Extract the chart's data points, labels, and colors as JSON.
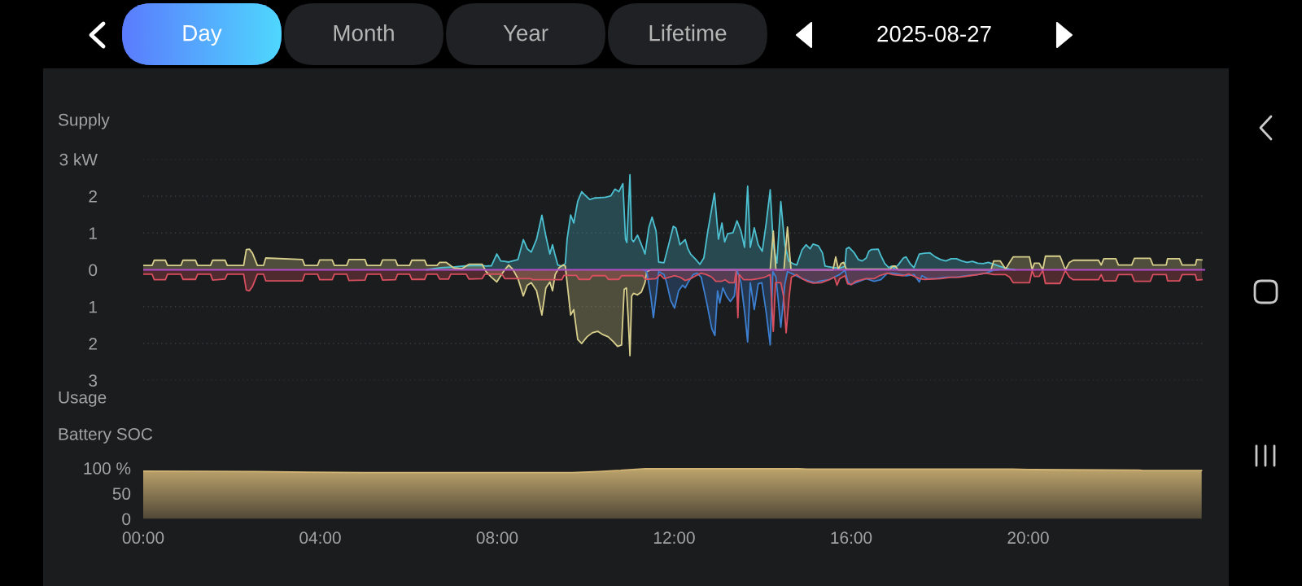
{
  "chart_data": [
    {
      "type": "other",
      "annotations": [
        "Day",
        "Month",
        "Year",
        "Lifetime",
        "2025-08-27"
      ]
    },
    {
      "type": "area",
      "annotations": [
        "Supply",
        "Usage"
      ],
      "xlim": [
        0,
        24
      ],
      "ylim": [
        -3,
        3
      ],
      "yticks": [
        {
          "value": 3,
          "label": "3 kW"
        },
        2,
        1,
        0,
        {
          "value": -1,
          "label": "1"
        },
        {
          "value": -2,
          "label": "2"
        },
        {
          "value": -3,
          "label": "3"
        }
      ],
      "grid": "y",
      "tick_labels": "y",
      "ref_lines": [
        {
          "axis": "y",
          "value": 0,
          "color": "#b04cc8"
        }
      ],
      "series": [
        {
          "color": "#4cc0d0",
          "x": [
            6.4,
            6.73,
            7.03,
            7.33,
            7.63,
            7.75,
            7.87,
            7.99,
            8.08,
            8.17,
            8.26,
            8.35,
            8.47,
            8.59,
            8.68,
            8.77,
            8.89,
            9.01,
            9.1,
            9.19,
            9.25,
            9.31,
            9.37,
            9.46,
            9.54,
            9.58,
            9.66,
            9.73,
            9.82,
            9.91,
            10.0,
            10.09,
            10.21,
            10.33,
            10.45,
            10.57,
            10.66,
            10.75,
            10.84,
            10.9,
            10.93,
            11.0,
            11.04,
            11.08,
            11.17,
            11.26,
            11.34,
            11.43,
            11.5,
            11.59,
            11.65,
            11.77,
            11.86,
            11.98,
            12.04,
            12.13,
            12.25,
            12.31,
            12.37,
            12.49,
            12.58,
            12.67,
            12.76,
            12.91,
            13.0,
            13.08,
            13.14,
            13.21,
            13.33,
            13.42,
            13.51,
            13.59,
            13.66,
            13.72,
            13.81,
            13.9,
            13.99,
            14.08,
            14.17,
            14.24,
            14.32,
            14.41,
            14.5,
            14.59,
            14.68,
            14.77,
            14.89,
            14.98,
            15.07,
            15.14,
            15.26,
            15.35,
            15.41,
            15.62,
            15.74,
            15.86,
            15.89,
            15.95,
            16.07,
            16.16,
            16.25,
            16.34,
            16.4,
            16.46,
            16.61,
            16.67,
            16.76,
            16.85,
            16.91,
            16.97,
            17.06,
            17.18,
            17.24,
            17.33,
            17.42,
            17.54,
            17.66,
            17.78,
            17.9,
            18.02,
            18.14,
            18.26,
            18.38,
            18.5,
            18.62,
            18.74,
            18.86,
            18.98,
            19.1,
            19.22,
            19.34,
            19.46,
            19.58,
            19.7
          ],
          "values": [
            0,
            0.06,
            0.08,
            0.11,
            0.12,
            0.1,
            0.11,
            0.43,
            0.24,
            0.23,
            0.21,
            0.24,
            0.28,
            0.82,
            0.57,
            0.48,
            0.83,
            1.48,
            0.91,
            0.43,
            0.68,
            0.39,
            0.13,
            0.1,
            0.17,
            0.83,
            1.49,
            1.27,
            1.86,
            2.12,
            2.01,
            1.91,
            1.95,
            1.96,
            1.97,
            2.01,
            2.19,
            2.12,
            2.34,
            0.83,
            0.74,
            2.58,
            0.83,
            0.76,
            0.94,
            0.68,
            0.43,
            1.16,
            1.43,
            1.05,
            0.21,
            0.19,
            0.61,
            1.18,
            1.13,
            0.68,
            0.82,
            0.57,
            0.43,
            0.28,
            0.15,
            0.32,
            1.05,
            2.08,
            0.83,
            1.27,
            0.76,
            0.98,
            1.01,
            1.33,
            1.05,
            0.61,
            2.27,
            0.61,
            1.14,
            0.68,
            0.5,
            1.27,
            2.17,
            0.68,
            0.18,
            1.85,
            0.68,
            0.24,
            0.17,
            0.13,
            0.54,
            0.68,
            0.57,
            0.7,
            0.65,
            0.46,
            0.1,
            0.06,
            0.04,
            0.1,
            0.57,
            0.61,
            0.46,
            0.28,
            0.24,
            0.32,
            0.5,
            0.55,
            0.56,
            0.39,
            0.17,
            0.06,
            0.1,
            0.04,
            0.13,
            0.32,
            0.35,
            0.17,
            0.06,
            0.43,
            0.45,
            0.46,
            0.35,
            0.28,
            0.24,
            0.3,
            0.3,
            0.24,
            0.2,
            0.23,
            0.18,
            0.17,
            0.2,
            0.15,
            0.1,
            0.06,
            0.02,
            0
          ]
        },
        {
          "color": "#d8cf8c",
          "x": [
            0,
            0.2,
            0.25,
            0.5,
            0.55,
            0.85,
            0.9,
            1.18,
            1.23,
            1.52,
            1.57,
            1.85,
            1.9,
            2.27,
            2.33,
            2.4,
            2.47,
            2.58,
            2.72,
            2.77,
            3.6,
            3.65,
            3.94,
            3.99,
            4.27,
            4.32,
            4.6,
            4.65,
            5.01,
            5.06,
            5.36,
            5.41,
            5.7,
            5.75,
            6.02,
            6.07,
            6.36,
            6.41,
            6.64,
            6.7,
            6.85,
            7.02,
            7.2,
            7.36,
            7.66,
            7.75,
            7.87,
            7.99,
            8.08,
            8.17,
            8.26,
            8.35,
            8.47,
            8.59,
            8.68,
            8.77,
            8.89,
            9.01,
            9.1,
            9.19,
            9.25,
            9.31,
            9.4,
            9.49,
            9.54,
            9.58,
            9.66,
            9.73,
            9.82,
            9.91,
            10.03,
            10.15,
            10.27,
            10.39,
            10.51,
            10.63,
            10.72,
            10.81,
            10.87,
            10.92,
            10.96,
            11.0,
            11.04,
            11.08,
            11.17,
            11.26,
            11.34,
            11.38,
            11.47,
            14.17,
            14.24,
            14.3,
            14.48,
            14.56,
            14.64,
            15.59,
            15.65,
            15.71,
            15.77,
            15.83,
            15.89,
            16.88,
            16.94,
            17.0,
            17.06,
            19.16,
            19.22,
            19.37,
            19.49,
            19.58,
            19.66,
            20.03,
            20.09,
            20.14,
            20.25,
            20.33,
            20.39,
            20.72,
            20.84,
            20.93,
            21.02,
            21.59,
            21.65,
            21.71,
            21.98,
            22.04,
            22.34,
            22.4,
            22.76,
            22.82,
            23.12,
            23.15,
            23.42,
            23.48,
            23.78,
            23.81,
            23.93
          ],
          "values": [
            0.12,
            0.12,
            0.26,
            0.26,
            0.12,
            0.12,
            0.26,
            0.26,
            0.12,
            0.12,
            0.26,
            0.26,
            0.12,
            0.12,
            0.55,
            0.56,
            0.45,
            0.12,
            0.12,
            0.32,
            0.28,
            0.12,
            0.12,
            0.27,
            0.27,
            0.12,
            0.12,
            0.28,
            0.28,
            0.12,
            0.12,
            0.27,
            0.27,
            0.12,
            0.12,
            0.26,
            0.26,
            0.12,
            0.12,
            0.2,
            0.2,
            0.05,
            0.03,
            0.15,
            0.15,
            -0.05,
            -0.2,
            -0.33,
            -0.16,
            0,
            0.13,
            0.02,
            -0.24,
            -0.71,
            -0.42,
            -0.35,
            -0.57,
            -1.23,
            -0.49,
            -0.33,
            -0.57,
            -0.13,
            0.06,
            0.13,
            0.1,
            -0.35,
            -1.23,
            -1.08,
            -1.89,
            -2.0,
            -1.82,
            -1.71,
            -1.67,
            -1.76,
            -1.82,
            -1.96,
            -2.08,
            -2.04,
            -0.53,
            -0.49,
            -1.3,
            -2.33,
            -0.71,
            -0.64,
            -0.68,
            -0.6,
            -0.35,
            -0.05,
            0,
            0,
            1.05,
            0,
            0,
            1.16,
            0,
            0,
            0.35,
            0.02,
            0.17,
            0.2,
            0.02,
            0.02,
            0.1,
            0.1,
            0,
            0,
            0.24,
            0.24,
            0.02,
            0.2,
            0.35,
            0.35,
            0,
            0.18,
            0.18,
            0,
            0.37,
            0.37,
            0,
            0.2,
            0.26,
            0.26,
            0.13,
            0.3,
            0.3,
            0.13,
            0.13,
            0.31,
            0.31,
            0.13,
            0.13,
            0.3,
            0.3,
            0.13,
            0.13,
            0.28,
            0.27
          ]
        },
        {
          "color": "#3d7fd0",
          "x": [
            11.3,
            11.38,
            11.47,
            11.53,
            11.59,
            11.65,
            11.77,
            11.83,
            11.92,
            12.01,
            12.1,
            12.19,
            12.25,
            12.31,
            12.43,
            12.52,
            12.61,
            12.73,
            12.85,
            12.92,
            12.98,
            13.03,
            13.1,
            13.18,
            13.27,
            13.36,
            13.42,
            13.51,
            13.6,
            13.66,
            13.72,
            13.81,
            13.9,
            13.98,
            14.08,
            14.17,
            14.23,
            14.3,
            14.41,
            14.5,
            14.56,
            14.71,
            14.89,
            15.07,
            15.19,
            15.31,
            15.5,
            15.62,
            15.74,
            15.86,
            15.92,
            15.98,
            16.1,
            16.34,
            16.52,
            16.67,
            16.82,
            16.94,
            17.24,
            17.42,
            17.54,
            17.6,
            17.72,
            17.9,
            18.14,
            18.38,
            18.62,
            18.86,
            19.04,
            19.22,
            19.34
          ],
          "values": [
            0,
            -0.05,
            -0.71,
            -1.3,
            -0.71,
            -0.05,
            -0.13,
            -0.35,
            -0.83,
            -1.04,
            -0.57,
            -0.42,
            -0.49,
            -0.35,
            -0.13,
            -0.09,
            -0.2,
            -0.86,
            -1.6,
            -1.78,
            -0.57,
            -0.9,
            -0.49,
            -0.71,
            -0.86,
            -0.71,
            -0.01,
            -0.35,
            -1.23,
            -1.96,
            -0.35,
            -1.08,
            -0.38,
            -0.35,
            -1.16,
            -2.04,
            -0.05,
            -0.2,
            -1.56,
            -0.4,
            -0.05,
            -0.13,
            -0.24,
            -0.31,
            -0.35,
            -0.3,
            -0.27,
            -0.2,
            -0.13,
            -0.01,
            -0.31,
            -0.4,
            -0.35,
            -0.24,
            -0.31,
            -0.27,
            -0.09,
            -0.09,
            -0.16,
            -0.13,
            -0.33,
            -0.16,
            -0.24,
            -0.24,
            -0.2,
            -0.2,
            -0.16,
            -0.13,
            -0.09,
            -0.01,
            0
          ]
        },
        {
          "color": "#d8505f",
          "x": [
            0,
            0.2,
            0.25,
            0.5,
            0.55,
            0.85,
            0.9,
            1.18,
            1.23,
            1.52,
            1.57,
            1.85,
            1.9,
            2.27,
            2.33,
            2.4,
            2.47,
            2.58,
            2.72,
            2.77,
            3.6,
            3.65,
            3.94,
            3.99,
            4.27,
            4.32,
            4.6,
            4.65,
            5.01,
            5.06,
            5.36,
            5.41,
            5.7,
            5.75,
            6.02,
            6.07,
            6.36,
            6.41,
            6.64,
            6.7,
            6.9,
            6.95,
            7.3,
            7.36,
            7.66,
            7.72,
            8.11,
            8.17,
            8.77,
            8.8,
            9.46,
            9.51,
            9.79,
            9.85,
            10.09,
            10.15,
            10.45,
            10.51,
            10.75,
            10.81,
            11.29,
            11.35,
            11.59,
            11.68,
            11.77,
            11.89,
            12.01,
            12.13,
            12.25,
            12.37,
            12.49,
            12.61,
            12.73,
            12.85,
            12.94,
            13.08,
            13.15,
            13.24,
            13.36,
            13.4,
            13.44,
            13.47,
            13.57,
            13.75,
            13.9,
            14.05,
            14.17,
            14.24,
            14.29,
            14.41,
            14.47,
            14.53,
            14.6,
            14.65,
            14.77,
            14.89,
            15.0,
            15.14,
            15.32,
            15.5,
            15.62,
            15.68,
            15.74,
            15.86,
            15.92,
            16.01,
            16.1,
            16.34,
            16.52,
            16.64,
            16.82,
            16.94,
            17.18,
            17.3,
            17.54,
            17.66,
            18.02,
            18.26,
            18.44,
            18.68,
            18.86,
            19.04,
            19.22,
            19.49,
            19.58,
            19.66,
            20.03,
            20.09,
            20.14,
            20.25,
            20.33,
            20.39,
            20.72,
            20.84,
            20.93,
            21.02,
            21.59,
            21.65,
            21.71,
            21.98,
            22.04,
            22.34,
            22.4,
            22.76,
            22.82,
            23.12,
            23.15,
            23.42,
            23.48,
            23.78,
            23.81,
            23.93
          ],
          "values": [
            -0.12,
            -0.12,
            -0.27,
            -0.27,
            -0.12,
            -0.12,
            -0.26,
            -0.26,
            -0.12,
            -0.12,
            -0.28,
            -0.25,
            -0.12,
            -0.12,
            -0.55,
            -0.57,
            -0.45,
            -0.12,
            -0.12,
            -0.3,
            -0.3,
            -0.12,
            -0.12,
            -0.27,
            -0.27,
            -0.12,
            -0.12,
            -0.29,
            -0.28,
            -0.12,
            -0.12,
            -0.28,
            -0.27,
            -0.12,
            -0.12,
            -0.26,
            -0.26,
            -0.12,
            -0.12,
            -0.25,
            -0.25,
            -0.12,
            -0.12,
            -0.25,
            -0.24,
            -0.12,
            -0.12,
            -0.24,
            -0.24,
            -0.27,
            -0.27,
            -0.15,
            -0.15,
            -0.26,
            -0.26,
            -0.16,
            -0.16,
            -0.26,
            -0.26,
            -0.16,
            -0.16,
            -0.26,
            -0.24,
            -0.13,
            -0.24,
            -0.2,
            -0.16,
            -0.2,
            -0.29,
            -0.24,
            -0.16,
            -0.09,
            -0.13,
            -0.2,
            -0.31,
            -0.31,
            -0.27,
            -0.35,
            -0.35,
            -0.05,
            -1.3,
            -0.13,
            -0.27,
            -0.27,
            -0.24,
            -0.2,
            -0.13,
            -1.67,
            -0.35,
            -0.35,
            -0.71,
            -1.71,
            -0.71,
            -0.2,
            -0.13,
            -0.24,
            -0.31,
            -0.36,
            -0.35,
            -0.27,
            -0.2,
            -0.42,
            -0.24,
            -0.16,
            -0.38,
            -0.4,
            -0.31,
            -0.24,
            -0.24,
            -0.16,
            -0.09,
            -0.13,
            -0.16,
            -0.11,
            -0.24,
            -0.26,
            -0.24,
            -0.2,
            -0.2,
            -0.16,
            -0.13,
            -0.09,
            -0.13,
            -0.13,
            -0.2,
            -0.35,
            -0.35,
            -0.02,
            -0.18,
            -0.18,
            -0.02,
            -0.37,
            -0.37,
            -0.02,
            -0.2,
            -0.27,
            -0.27,
            -0.13,
            -0.3,
            -0.3,
            -0.13,
            -0.13,
            -0.31,
            -0.31,
            -0.13,
            -0.13,
            -0.3,
            -0.3,
            -0.13,
            -0.13,
            -0.28,
            -0.27
          ]
        }
      ]
    },
    {
      "type": "area",
      "title": "Battery SOC",
      "xlim": [
        0,
        24
      ],
      "xticks": [
        {
          "value": 0,
          "label": "00:00"
        },
        {
          "value": 4,
          "label": "04:00"
        },
        {
          "value": 8,
          "label": "08:00"
        },
        {
          "value": 12,
          "label": "12:00"
        },
        {
          "value": 16,
          "label": "16:00"
        },
        {
          "value": 20,
          "label": "20:00"
        }
      ],
      "ylim": [
        0,
        100
      ],
      "yticks": [
        {
          "value": 100,
          "label": "100 %"
        },
        50,
        0
      ],
      "series": [
        {
          "color": "#d2b576",
          "x": [
            0,
            2.6,
            3.7,
            5.0,
            9.7,
            10.3,
            10.7,
            11.4,
            14.75,
            15.0,
            19.65,
            20.0,
            22.5,
            22.6,
            23.92
          ],
          "values": [
            94,
            93,
            92,
            91,
            91,
            93,
            95,
            99,
            99,
            98,
            98,
            97,
            96,
            95,
            95
          ]
        }
      ]
    }
  ]
}
